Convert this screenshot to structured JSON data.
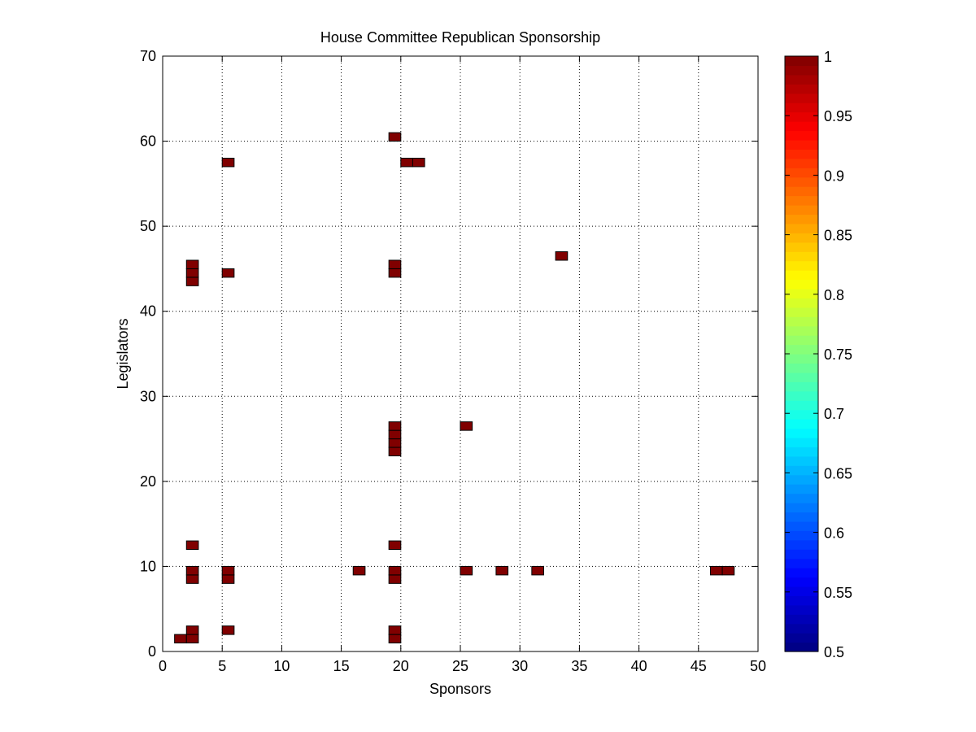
{
  "chart_data": {
    "type": "heatmap",
    "title": "House Committee Republican Sponsorship",
    "xlabel": "Sponsors",
    "ylabel": "Legislators",
    "xlim": [
      0,
      50
    ],
    "ylim": [
      0,
      70
    ],
    "xticks": [
      0,
      5,
      10,
      15,
      20,
      25,
      30,
      35,
      40,
      45,
      50
    ],
    "yticks": [
      0,
      10,
      20,
      30,
      40,
      50,
      60,
      70
    ],
    "grid": true,
    "colormap": "jet",
    "colorbar": {
      "range": [
        0.5,
        1
      ],
      "ticks": [
        "0.5",
        "0.55",
        "0.6",
        "0.65",
        "0.7",
        "0.75",
        "0.8",
        "0.85",
        "0.9",
        "0.95",
        "1"
      ]
    },
    "cell_color": "#800000",
    "cell_value": 1,
    "cells": [
      {
        "x": 1,
        "y": 1
      },
      {
        "x": 2,
        "y": 1
      },
      {
        "x": 2,
        "y": 2
      },
      {
        "x": 5,
        "y": 2
      },
      {
        "x": 19,
        "y": 1
      },
      {
        "x": 19,
        "y": 2
      },
      {
        "x": 2,
        "y": 8
      },
      {
        "x": 2,
        "y": 9
      },
      {
        "x": 5,
        "y": 8
      },
      {
        "x": 5,
        "y": 9
      },
      {
        "x": 16,
        "y": 9
      },
      {
        "x": 19,
        "y": 8
      },
      {
        "x": 19,
        "y": 9
      },
      {
        "x": 25,
        "y": 9
      },
      {
        "x": 28,
        "y": 9
      },
      {
        "x": 31,
        "y": 9
      },
      {
        "x": 46,
        "y": 9
      },
      {
        "x": 47,
        "y": 9
      },
      {
        "x": 2,
        "y": 12
      },
      {
        "x": 19,
        "y": 12
      },
      {
        "x": 19,
        "y": 23
      },
      {
        "x": 19,
        "y": 24
      },
      {
        "x": 19,
        "y": 25
      },
      {
        "x": 19,
        "y": 26
      },
      {
        "x": 25,
        "y": 26
      },
      {
        "x": 2,
        "y": 43
      },
      {
        "x": 2,
        "y": 44
      },
      {
        "x": 2,
        "y": 45
      },
      {
        "x": 5,
        "y": 44
      },
      {
        "x": 19,
        "y": 44
      },
      {
        "x": 19,
        "y": 45
      },
      {
        "x": 33,
        "y": 46
      },
      {
        "x": 5,
        "y": 57
      },
      {
        "x": 20,
        "y": 57
      },
      {
        "x": 21,
        "y": 57
      },
      {
        "x": 19,
        "y": 60
      }
    ]
  }
}
